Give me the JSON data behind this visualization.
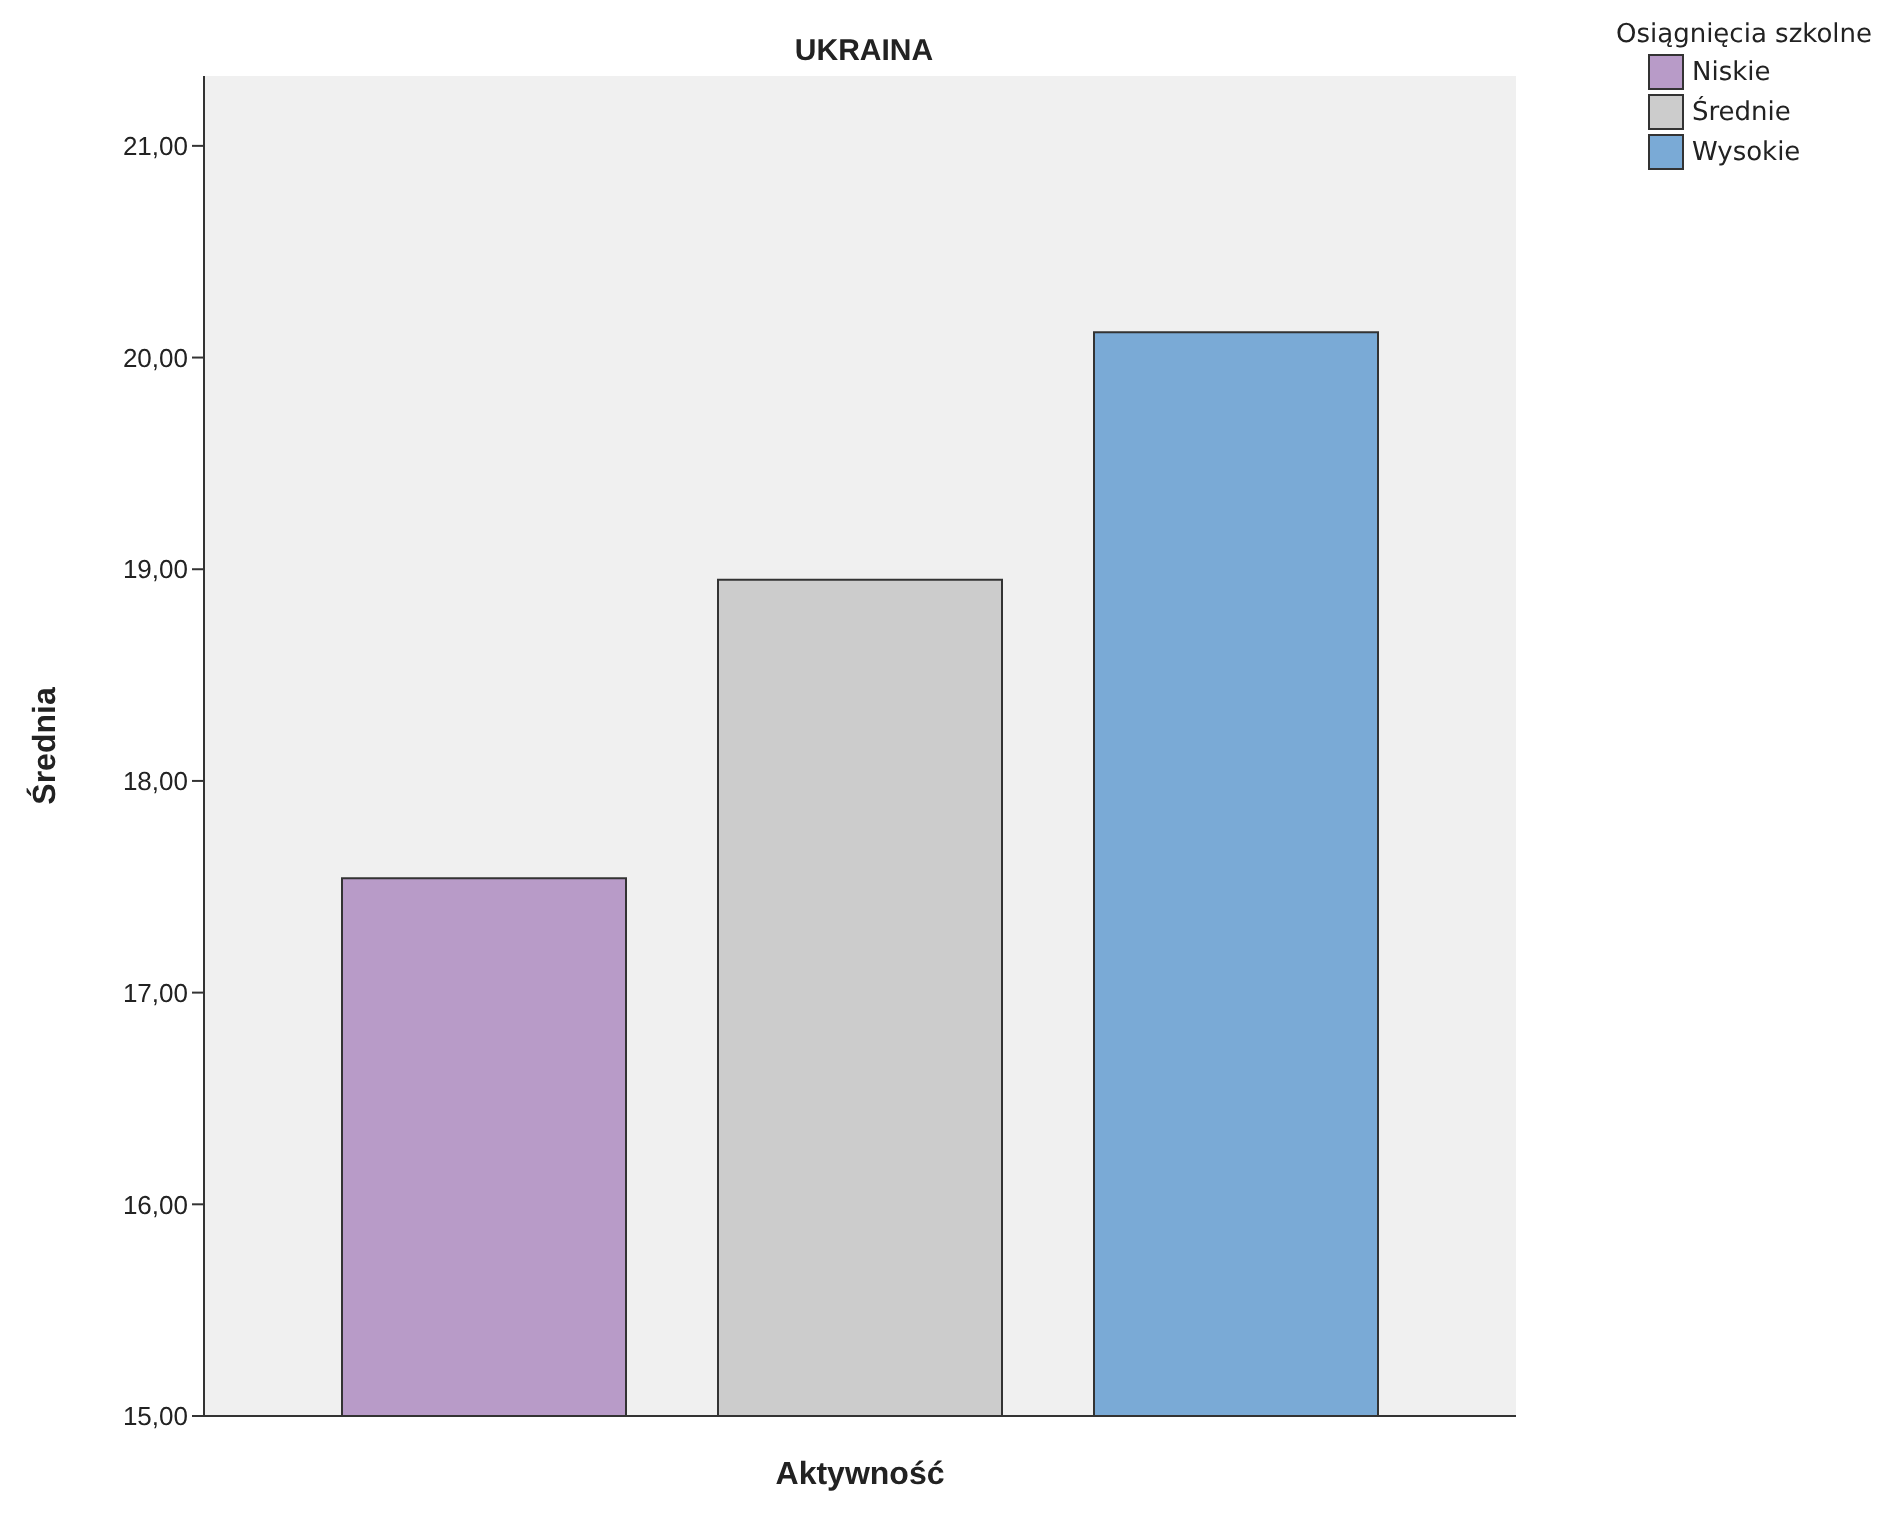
{
  "chart_data": {
    "type": "bar",
    "title": "UKRAINA",
    "xlabel": "Aktywność",
    "ylabel": "Średnia",
    "legend_title": "Osiągnięcia szkolne",
    "categories": [
      null
    ],
    "series": [
      {
        "name": "Niskie",
        "color": "#b89bc8",
        "values": [
          17.54
        ]
      },
      {
        "name": "Średnie",
        "color": "#cccccc",
        "values": [
          18.95
        ]
      },
      {
        "name": "Wysokie",
        "color": "#7aaad6",
        "values": [
          20.12
        ]
      }
    ],
    "ylim": [
      15,
      21.33
    ],
    "yticks": [
      {
        "value": 15,
        "label": "15,00"
      },
      {
        "value": 16,
        "label": "16,00"
      },
      {
        "value": 17,
        "label": "17,00"
      },
      {
        "value": 18,
        "label": "18,00"
      },
      {
        "value": 19,
        "label": "19,00"
      },
      {
        "value": 20,
        "label": "20,00"
      },
      {
        "value": 21,
        "label": "21,00"
      }
    ],
    "legend": "top right"
  }
}
